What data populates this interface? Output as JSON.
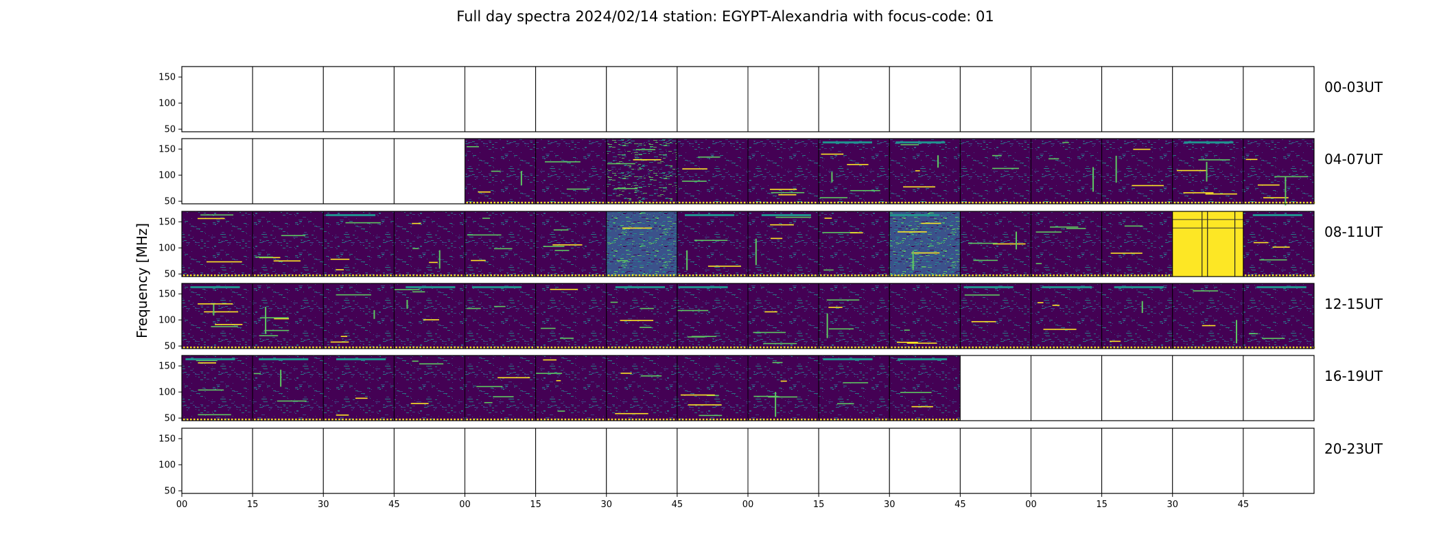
{
  "chart_data": {
    "type": "heatmap",
    "title": "Full day spectra 2024/02/14 station: EGYPT-Alexandria with focus-code: 01",
    "ylabel": "Frequency [MHz]",
    "xlabel": "",
    "ylim": [
      45,
      170
    ],
    "y_ticks": [
      150,
      100,
      50
    ],
    "x_ticks": [
      "00",
      "15",
      "30",
      "45",
      "00",
      "15",
      "30",
      "45",
      "00",
      "15",
      "30",
      "45",
      "00",
      "15",
      "30",
      "45"
    ],
    "colormap": [
      "#440154",
      "#3b528b",
      "#21908d",
      "#5ec962",
      "#fde725"
    ],
    "empty_color": "#ffffff",
    "rows": [
      {
        "label": "00-03UT",
        "panels": [
          "none",
          "none",
          "none",
          "none",
          "none",
          "none",
          "none",
          "none",
          "none",
          "none",
          "none",
          "none",
          "none",
          "none",
          "none",
          "none"
        ]
      },
      {
        "label": "04-07UT",
        "panels": [
          "none",
          "none",
          "none",
          "none",
          "low",
          "low",
          "mid",
          "low",
          "low",
          "low",
          "low",
          "low",
          "low",
          "low",
          "low",
          "low"
        ]
      },
      {
        "label": "08-11UT",
        "panels": [
          "low",
          "low",
          "low",
          "low",
          "low",
          "low",
          "high",
          "low",
          "low",
          "low",
          "high",
          "low",
          "low",
          "low",
          "saturated",
          "low"
        ]
      },
      {
        "label": "12-15UT",
        "panels": [
          "low",
          "low",
          "low",
          "low",
          "low",
          "low",
          "low",
          "low",
          "low",
          "low",
          "low",
          "low",
          "low",
          "low",
          "low",
          "low"
        ]
      },
      {
        "label": "16-19UT",
        "panels": [
          "low",
          "low",
          "low",
          "low",
          "low",
          "low",
          "low",
          "low",
          "low",
          "low",
          "low",
          "none",
          "none",
          "none",
          "none",
          "none"
        ]
      },
      {
        "label": "20-23UT",
        "panels": [
          "none",
          "none",
          "none",
          "none",
          "none",
          "none",
          "none",
          "none",
          "none",
          "none",
          "none",
          "none",
          "none",
          "none",
          "none",
          "none"
        ]
      }
    ]
  }
}
